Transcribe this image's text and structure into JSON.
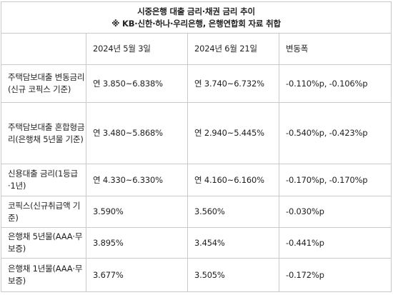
{
  "title": "시중은행 대출 금리·채권 금리 추이",
  "subtitle": "※ KB·신한·하나·우리은행, 은행연합회 자료 취합",
  "headers": [
    "",
    "2024년 5월 3일",
    "2024년 6월 21일",
    "변동폭"
  ],
  "rows": [
    {
      "label": "주택담보대출 변동금리\n(신규 코픽스 기준)",
      "may": "연 3.850~6.838%",
      "june": "연 3.740~6.732%",
      "change": "-0.110%p, -0.106%p"
    },
    {
      "label": "주택담보대출 혼합형금\n리(은행채 5년물 기준)",
      "may": "연 3.480~5.868%",
      "june": "연 2.940~5.445%",
      "change": "-0.540%p, -0.423%p"
    },
    {
      "label": "신용대출 금리(1등급\n·1년)",
      "may": "연 4.330~6.330%",
      "june": "연 4.160~6.160%",
      "change": "-0.170%p, -0.170%p"
    },
    {
      "label": "코픽스(신규취급액 기\n준)",
      "may": "3.590%",
      "june": "3.560%",
      "change": "-0.030%p"
    },
    {
      "label": "은행채 5년물(AAA·무\n보증)",
      "may": "3.895%",
      "june": "3.454%",
      "change": "-0.441%p"
    },
    {
      "label": "은행채 1년물(AAA·무\n보증)",
      "may": "3.677%",
      "june": "3.505%",
      "change": "-0.172%p"
    }
  ]
}
